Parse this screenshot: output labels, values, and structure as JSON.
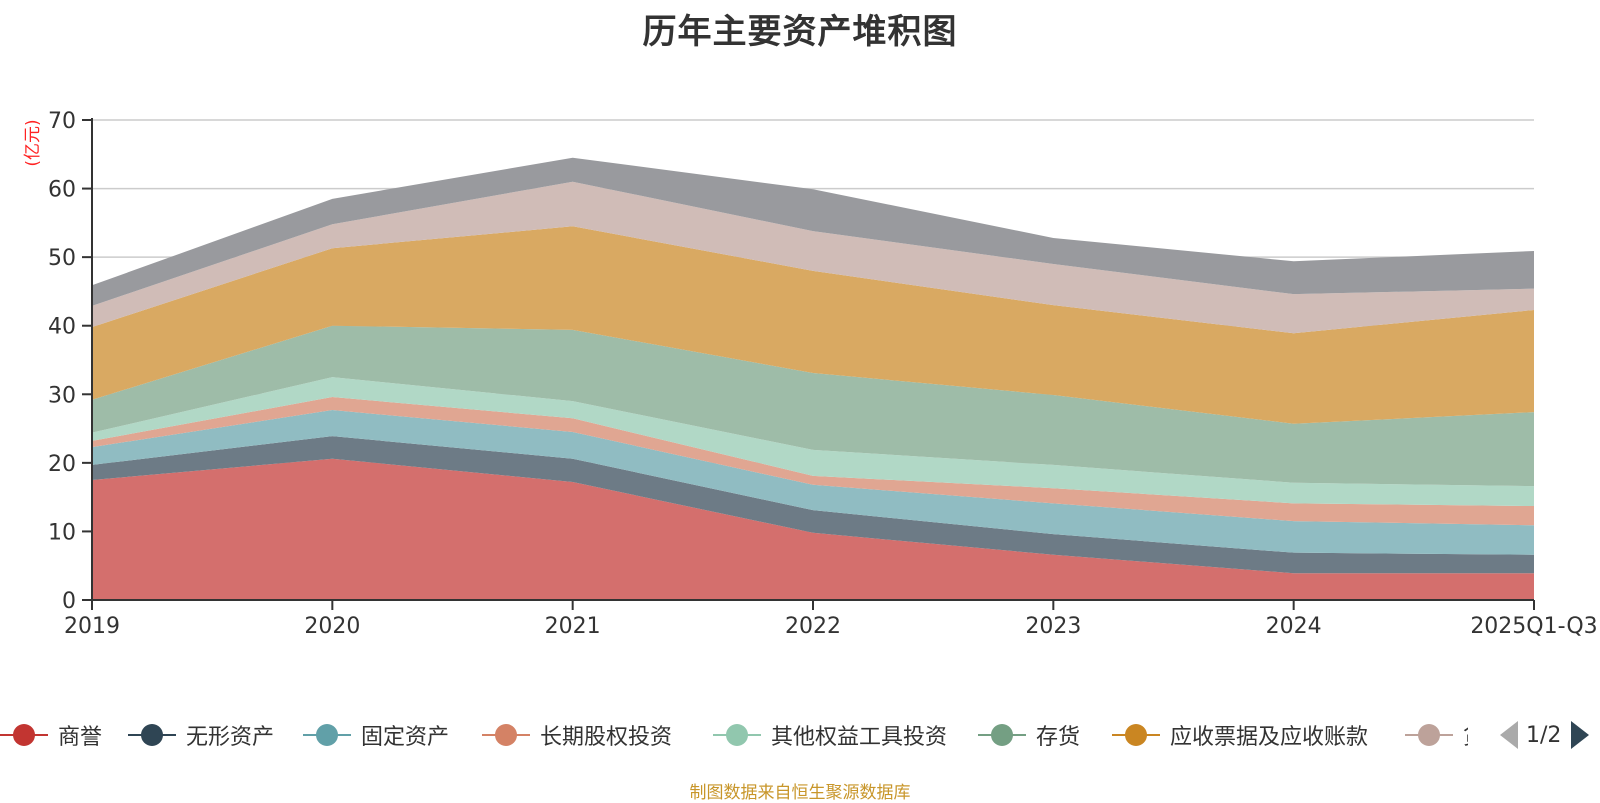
{
  "title": "历年主要资产堆积图",
  "source_note": "制图数据来自恒生聚源数据库",
  "legend_pager": {
    "text": "1/2",
    "prev_icon": "triangle-left-icon",
    "next_icon": "triangle-right-icon"
  },
  "chart_data": {
    "type": "area",
    "stacked": true,
    "title": "历年主要资产堆积图",
    "ylabel": "(亿元)",
    "xlabel": "",
    "categories": [
      "2019",
      "2020",
      "2021",
      "2022",
      "2023",
      "2024",
      "2025Q1-Q3"
    ],
    "ylim": [
      0,
      70
    ],
    "yticks": [
      0,
      10,
      20,
      30,
      40,
      50,
      60,
      70
    ],
    "grid": true,
    "legend_position": "bottom",
    "series": [
      {
        "name": "商誉",
        "color": "#c23531",
        "fill": "#d46f6d",
        "values": [
          17.5,
          20.6,
          17.2,
          9.8,
          6.6,
          3.9,
          3.9
        ]
      },
      {
        "name": "无形资产",
        "color": "#2f4554",
        "fill": "#6d7b86",
        "values": [
          2.2,
          3.3,
          3.4,
          3.3,
          3.0,
          3.0,
          2.7
        ]
      },
      {
        "name": "固定资产",
        "color": "#61a0a8",
        "fill": "#90bcc2",
        "values": [
          2.6,
          3.8,
          3.9,
          3.7,
          4.5,
          4.6,
          4.3
        ]
      },
      {
        "name": "长期股权投资",
        "color": "#d48265",
        "fill": "#e0a692",
        "values": [
          0.9,
          1.9,
          2.0,
          1.3,
          2.2,
          2.6,
          2.8
        ]
      },
      {
        "name": "其他权益工具投资",
        "color": "#91c7ae",
        "fill": "#b1d8c6",
        "values": [
          1.2,
          2.9,
          2.5,
          3.8,
          3.4,
          3.0,
          2.9
        ]
      },
      {
        "name": "存货",
        "color": "#749f83",
        "fill": "#9ebca8",
        "values": [
          4.8,
          7.5,
          10.4,
          11.2,
          10.2,
          8.6,
          10.8
        ]
      },
      {
        "name": "应收票据及应收账款",
        "color": "#ca8622",
        "fill": "#d9a962",
        "values": [
          10.6,
          11.3,
          15.1,
          14.9,
          13.1,
          13.2,
          14.9
        ]
      },
      {
        "name": "货",
        "color": "#bda29a",
        "fill": "#d0bcb7",
        "values": [
          3.1,
          3.5,
          6.5,
          5.8,
          6.0,
          5.7,
          3.1
        ]
      },
      {
        "name": "",
        "color": "#6e7074",
        "fill": "#999a9e",
        "values": [
          3.0,
          3.7,
          3.5,
          6.1,
          3.8,
          4.8,
          5.5
        ]
      }
    ]
  }
}
